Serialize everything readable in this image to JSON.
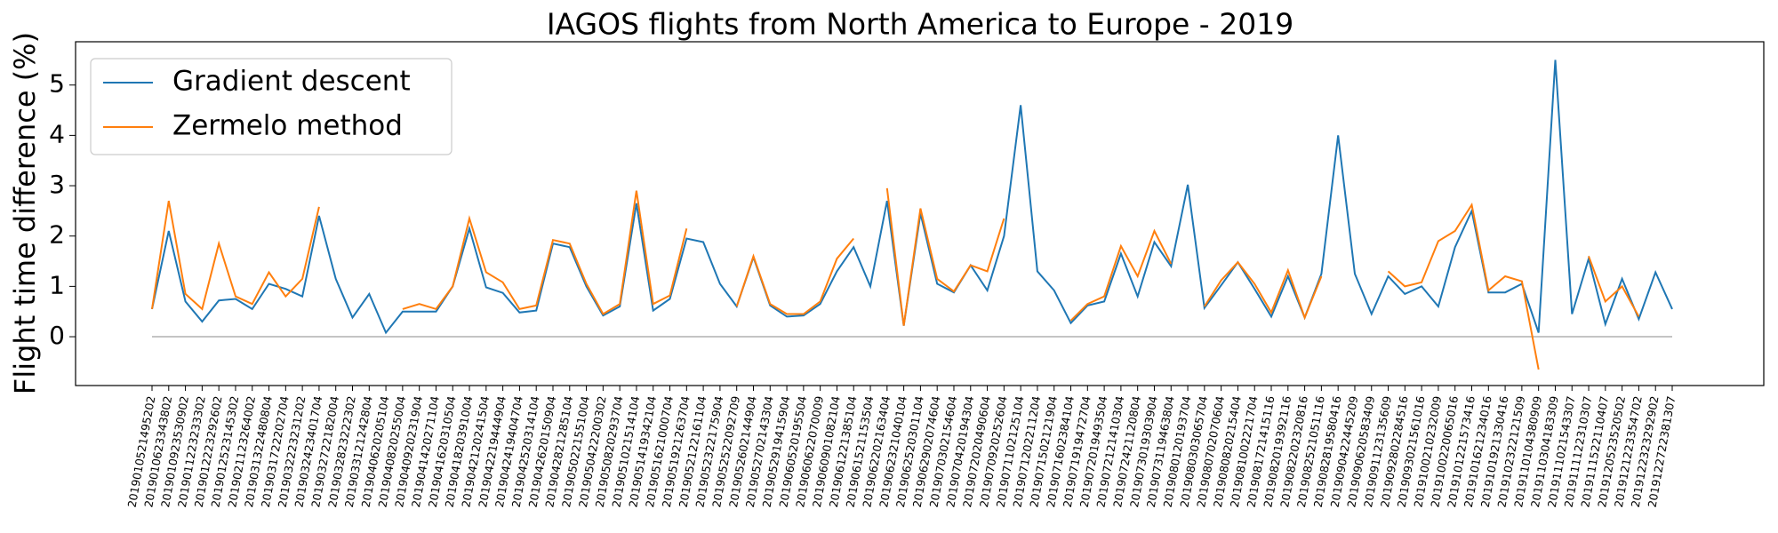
{
  "chart_data": {
    "type": "line",
    "title": "IAGOS flights from North America to Europe - 2019",
    "y_label": "Flight time difference (%)",
    "categories": [
      "2019010521495202",
      "2019010623343802",
      "2019010923530902",
      "2019011223233302",
      "2019012223292602",
      "2019012523145302",
      "2019021123264002",
      "2019031322480804",
      "2019031722202704",
      "2019032223231202",
      "2019032423401704",
      "2019032722182004",
      "2019032823222302",
      "2019033121242804",
      "2019040620205104",
      "2019040820255004",
      "2019040920231904",
      "2019041420271104",
      "2019041620310504",
      "2019041820391004",
      "2019042120241504",
      "2019042219444904",
      "2019042419404704",
      "2019042520314104",
      "2019042620150904",
      "2019042821285104",
      "2019050221551004",
      "2019050422200302",
      "2019050820293704",
      "2019051021514104",
      "2019051419342104",
      "2019051621000704",
      "2019051921263704",
      "2019052122161104",
      "2019052322175904",
      "2019052522092709",
      "2019052602144904",
      "2019052702143304",
      "2019052919415904",
      "2019060520195504",
      "2019060622070009",
      "2019060901082104",
      "2019061221385104",
      "2019061521153504",
      "2019062202163404",
      "2019062321040104",
      "2019062520301104",
      "2019062902074604",
      "2019070302154604",
      "2019070420194304",
      "2019072020490604",
      "2019070920252604",
      "2019071102125104",
      "2019071202211204",
      "2019071502121904",
      "2019071602384104",
      "2019071919472704",
      "2019072019493504",
      "2019072121410304",
      "2019072421120804",
      "2019073019303904",
      "2019073119463804",
      "2019080120193704",
      "2019080303065704",
      "2019080702070604",
      "2019080820215404",
      "2019081002221704",
      "2019081721415116",
      "2019082019392116",
      "2019082202320816",
      "2019082521051116",
      "2019082819580416",
      "2019090422445209",
      "2019090620583409",
      "2019091123135609",
      "2019092802284516",
      "2019093021561016",
      "2019100210232009",
      "2019100220065016",
      "2019101221573416",
      "2019101621234016",
      "2019101921330416",
      "2019102322121509",
      "2019110104380909",
      "2019110304183309",
      "2019111021543307",
      "2019111122310307",
      "2019111522110407",
      "2019120523520502",
      "2019121223354702",
      "2019122323292902",
      "2019122722381307"
    ],
    "series": [
      {
        "name": "Gradient descent",
        "color": "#1f77b4",
        "values": [
          0.55,
          2.1,
          0.7,
          0.3,
          0.72,
          0.75,
          0.55,
          1.05,
          0.95,
          0.8,
          2.4,
          1.15,
          0.38,
          0.85,
          0.08,
          0.5,
          0.5,
          0.5,
          1.0,
          2.15,
          0.98,
          0.87,
          0.48,
          0.52,
          1.85,
          1.78,
          1.0,
          0.42,
          0.6,
          2.65,
          0.52,
          0.75,
          1.95,
          1.88,
          1.05,
          0.6,
          1.58,
          0.62,
          0.4,
          0.42,
          0.65,
          1.3,
          1.78,
          1.0,
          2.7,
          0.22,
          2.45,
          1.05,
          0.88,
          1.42,
          0.92,
          2.0,
          4.6,
          1.3,
          0.92,
          0.27,
          0.62,
          0.7,
          1.65,
          0.8,
          1.88,
          1.4,
          3.02,
          0.57,
          1.02,
          1.48,
          0.95,
          0.4,
          1.2,
          0.38,
          1.25,
          4.0,
          1.25,
          0.45,
          1.2,
          0.85,
          1.0,
          0.6,
          1.78,
          2.5,
          0.88,
          0.88,
          1.05,
          0.08,
          5.5,
          0.45,
          1.55,
          0.25,
          1.15,
          0.35,
          1.28,
          0.55
        ]
      },
      {
        "name": "Zermelo method",
        "color": "#ff7f0e",
        "values": [
          0.55,
          2.7,
          0.85,
          0.55,
          1.85,
          0.8,
          0.65,
          1.28,
          0.8,
          1.15,
          2.58,
          null,
          null,
          null,
          null,
          0.55,
          0.65,
          0.55,
          1.0,
          2.35,
          1.28,
          1.08,
          0.55,
          0.62,
          1.92,
          1.85,
          1.05,
          0.45,
          0.65,
          2.9,
          0.65,
          0.82,
          2.15,
          null,
          null,
          0.6,
          1.6,
          0.65,
          0.45,
          0.45,
          0.7,
          1.55,
          1.95,
          null,
          2.95,
          0.22,
          2.55,
          1.15,
          0.9,
          1.42,
          1.3,
          2.35,
          null,
          null,
          null,
          0.32,
          0.65,
          0.8,
          1.8,
          1.2,
          2.1,
          1.45,
          null,
          0.6,
          1.12,
          1.48,
          1.05,
          0.48,
          1.32,
          0.38,
          1.2,
          null,
          null,
          null,
          1.3,
          1.0,
          1.08,
          1.9,
          2.1,
          2.62,
          0.92,
          1.2,
          1.1,
          -0.65,
          null,
          null,
          1.6,
          0.7,
          1.0,
          0.4,
          null,
          0.6
        ]
      }
    ],
    "hline": 0,
    "ylim": [
      -0.97,
      5.86
    ],
    "yticks": [
      0,
      1,
      2,
      3,
      4,
      5
    ],
    "legend": "upper left"
  }
}
